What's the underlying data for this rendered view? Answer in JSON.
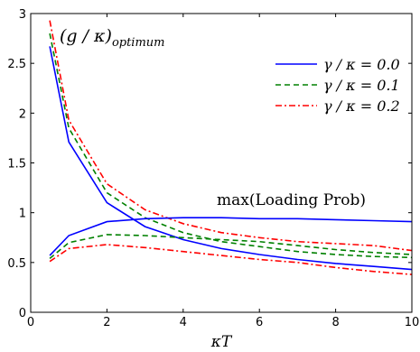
{
  "chart_data": {
    "type": "line",
    "xlabel": "κT",
    "ylabel": "",
    "xlim": [
      0,
      10
    ],
    "ylim": [
      0,
      3
    ],
    "xticks": [
      "0",
      "2",
      "4",
      "6",
      "8",
      "10"
    ],
    "yticks": [
      "0",
      "0.5",
      "1",
      "1.5",
      "2",
      "2.5",
      "3"
    ],
    "grid": false,
    "legend_position": "top-right",
    "annotations": {
      "g_opt_main": "(g / κ)",
      "g_opt_sub": "optimum",
      "loading": "max(Loading Prob)"
    },
    "series": [
      {
        "name": "γ / κ = 0.0",
        "group": "g_opt",
        "color": "#0000ff",
        "dash": "solid",
        "x": [
          0.5,
          1,
          2,
          3,
          4,
          5,
          6,
          7,
          8,
          9,
          10
        ],
        "y": [
          2.67,
          1.71,
          1.1,
          0.86,
          0.73,
          0.64,
          0.58,
          0.53,
          0.49,
          0.46,
          0.43
        ]
      },
      {
        "name": "γ / κ = 0.1",
        "group": "g_opt",
        "color": "#008000",
        "dash": "dashed",
        "x": [
          0.5,
          1,
          2,
          3,
          4,
          5,
          6,
          7,
          8,
          9,
          10
        ],
        "y": [
          2.8,
          1.85,
          1.2,
          0.95,
          0.8,
          0.71,
          0.66,
          0.61,
          0.58,
          0.56,
          0.55
        ]
      },
      {
        "name": "γ / κ = 0.2",
        "group": "g_opt",
        "color": "#ff0000",
        "dash": "dashdot",
        "x": [
          0.5,
          1,
          2,
          3,
          4,
          5,
          6,
          7,
          8,
          9,
          10
        ],
        "y": [
          2.93,
          1.93,
          1.29,
          1.03,
          0.89,
          0.8,
          0.75,
          0.71,
          0.69,
          0.67,
          0.62
        ]
      },
      {
        "name": "γ / κ = 0.0",
        "group": "loading",
        "color": "#0000ff",
        "dash": "solid",
        "x": [
          0.5,
          1,
          2,
          3,
          4,
          5,
          6,
          7,
          8,
          9,
          10
        ],
        "y": [
          0.57,
          0.77,
          0.91,
          0.94,
          0.95,
          0.95,
          0.94,
          0.94,
          0.93,
          0.92,
          0.91
        ]
      },
      {
        "name": "γ / κ = 0.1",
        "group": "loading",
        "color": "#008000",
        "dash": "dashed",
        "x": [
          0.5,
          1,
          2,
          3,
          4,
          5,
          6,
          7,
          8,
          9,
          10
        ],
        "y": [
          0.54,
          0.7,
          0.78,
          0.77,
          0.75,
          0.73,
          0.71,
          0.67,
          0.63,
          0.6,
          0.58
        ]
      },
      {
        "name": "γ / κ = 0.2",
        "group": "loading",
        "color": "#ff0000",
        "dash": "dashdot",
        "x": [
          0.5,
          1,
          2,
          3,
          4,
          5,
          6,
          7,
          8,
          9,
          10
        ],
        "y": [
          0.51,
          0.64,
          0.68,
          0.65,
          0.61,
          0.57,
          0.53,
          0.5,
          0.45,
          0.41,
          0.38
        ]
      }
    ],
    "legend": [
      {
        "label": "γ / κ = 0.0",
        "color": "#0000ff",
        "dash": "solid"
      },
      {
        "label": "γ / κ = 0.1",
        "color": "#008000",
        "dash": "dashed"
      },
      {
        "label": "γ / κ = 0.2",
        "color": "#ff0000",
        "dash": "dashdot"
      }
    ]
  }
}
